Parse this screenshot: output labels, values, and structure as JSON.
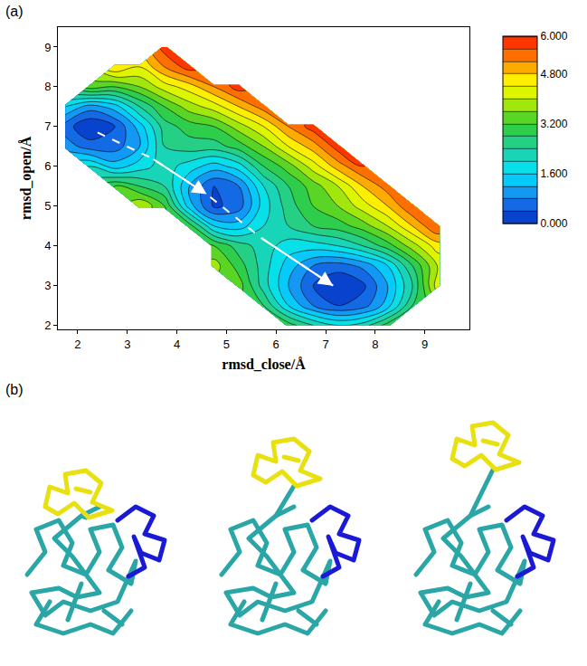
{
  "panel_labels": [
    "(a)",
    "(b)"
  ],
  "chart_data": {
    "type": "contour",
    "x_label": "rmsd_close/Å",
    "y_label": "rmsd_open/Å",
    "x": [
      1.75,
      2.25,
      2.75,
      3.25,
      3.75,
      4.25,
      4.75,
      5.25,
      5.75,
      6.25,
      6.75,
      7.25,
      7.75,
      8.25,
      8.75,
      9.25,
      9.75
    ],
    "y": [
      2.0,
      2.5,
      3.0,
      3.5,
      4.0,
      4.5,
      5.0,
      5.5,
      6.0,
      6.5,
      7.0,
      7.5,
      8.0,
      8.5,
      9.0
    ],
    "z": [
      [
        null,
        null,
        null,
        null,
        null,
        null,
        null,
        null,
        null,
        3.0,
        2.4,
        2.0,
        2.2,
        3.0,
        null,
        null,
        null
      ],
      [
        null,
        null,
        null,
        null,
        null,
        null,
        null,
        null,
        2.8,
        1.6,
        0.8,
        0.4,
        0.6,
        1.4,
        2.8,
        null,
        null
      ],
      [
        null,
        null,
        null,
        null,
        null,
        null,
        null,
        3.4,
        2.2,
        1.2,
        0.4,
        0.0,
        0.3,
        1.2,
        2.4,
        4.2,
        null
      ],
      [
        null,
        null,
        null,
        null,
        null,
        null,
        3.8,
        3.0,
        2.2,
        1.4,
        0.8,
        0.6,
        0.9,
        1.6,
        2.8,
        4.0,
        null
      ],
      [
        null,
        null,
        null,
        null,
        null,
        null,
        3.2,
        2.6,
        2.2,
        1.8,
        1.8,
        2.0,
        2.4,
        3.0,
        3.8,
        4.6,
        null
      ],
      [
        null,
        null,
        null,
        null,
        null,
        3.0,
        1.6,
        1.4,
        2.0,
        2.4,
        2.8,
        3.0,
        3.4,
        4.0,
        4.8,
        5.6,
        null
      ],
      [
        null,
        null,
        null,
        4.0,
        3.2,
        1.4,
        0.3,
        0.6,
        1.8,
        2.6,
        3.2,
        3.6,
        4.2,
        4.8,
        5.6,
        null,
        null
      ],
      [
        null,
        null,
        3.2,
        2.8,
        2.4,
        1.2,
        0.4,
        0.8,
        2.0,
        2.8,
        3.4,
        4.0,
        4.8,
        5.4,
        null,
        null,
        null
      ],
      [
        null,
        2.0,
        1.4,
        1.8,
        2.2,
        1.8,
        1.4,
        1.8,
        2.8,
        3.4,
        4.2,
        5.0,
        5.6,
        null,
        null,
        null,
        null
      ],
      [
        1.0,
        0.6,
        0.6,
        1.2,
        2.4,
        2.6,
        2.6,
        3.0,
        3.6,
        4.4,
        5.0,
        5.8,
        null,
        null,
        null,
        null,
        null
      ],
      [
        0.6,
        0.0,
        0.4,
        1.4,
        2.6,
        3.0,
        3.2,
        3.8,
        4.4,
        5.2,
        5.8,
        null,
        null,
        null,
        null,
        null,
        null
      ],
      [
        1.6,
        1.0,
        1.4,
        2.4,
        3.2,
        3.8,
        4.2,
        4.8,
        5.4,
        null,
        null,
        null,
        null,
        null,
        null,
        null,
        null
      ],
      [
        null,
        3.4,
        3.2,
        3.6,
        4.2,
        4.6,
        5.2,
        5.8,
        null,
        null,
        null,
        null,
        null,
        null,
        null,
        null,
        null
      ],
      [
        null,
        null,
        4.8,
        4.4,
        5.2,
        5.8,
        null,
        null,
        null,
        null,
        null,
        null,
        null,
        null,
        null,
        null,
        null
      ],
      [
        null,
        null,
        null,
        null,
        5.8,
        null,
        null,
        null,
        null,
        null,
        null,
        null,
        null,
        null,
        null,
        null,
        null
      ]
    ],
    "contour_step": 0.4,
    "colorbar": {
      "range": [
        0,
        6
      ],
      "ticks": [
        {
          "value": 0,
          "label": "0.000"
        },
        {
          "value": 1.6,
          "label": "1.600"
        },
        {
          "value": 3.2,
          "label": "3.200"
        },
        {
          "value": 4.8,
          "label": "4.800"
        },
        {
          "value": 6,
          "label": "6.000"
        }
      ]
    },
    "pathway": {
      "x": [
        2.4,
        3.5,
        4.6,
        5.7,
        7.15
      ],
      "y": [
        6.85,
        6.2,
        5.3,
        4.2,
        3.0
      ]
    },
    "xlim": [
      1.6,
      9.9
    ],
    "ylim": [
      1.9,
      9.5
    ],
    "xticks": [
      2,
      3,
      4,
      5,
      6,
      7,
      8,
      9
    ],
    "yticks": [
      2,
      3,
      4,
      5,
      6,
      7,
      8,
      9
    ],
    "grid": false
  }
}
